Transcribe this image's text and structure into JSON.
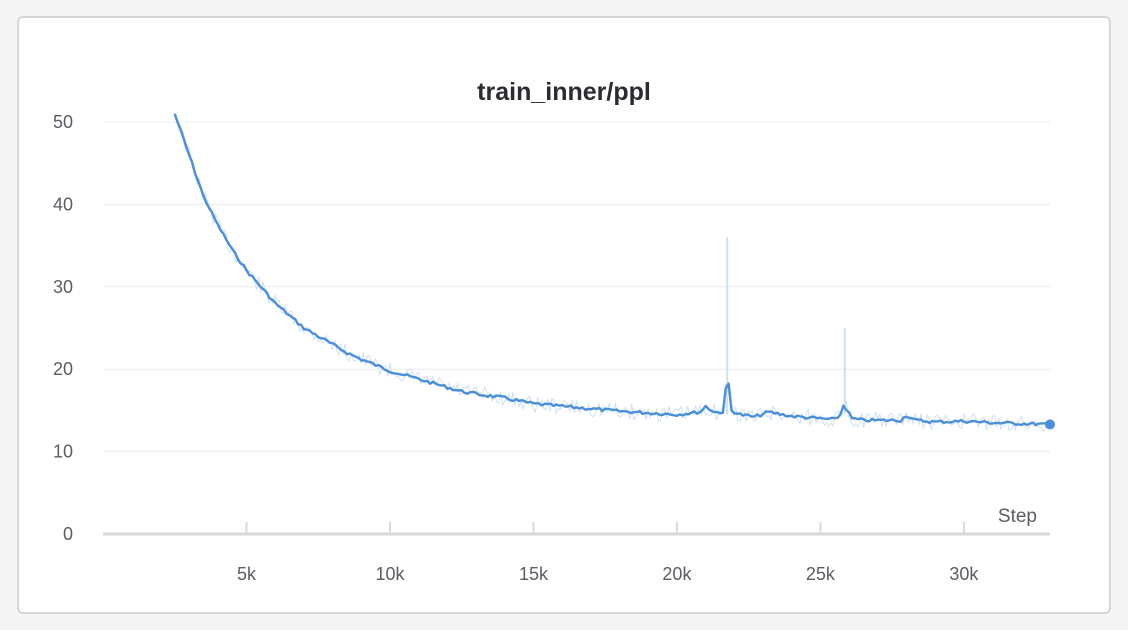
{
  "chart_data": {
    "type": "line",
    "title": "train_inner/ppl",
    "xlabel": "Step",
    "ylabel": "",
    "xlim": [
      0,
      33000
    ],
    "ylim": [
      0,
      50
    ],
    "x_ticks": [
      5000,
      10000,
      15000,
      20000,
      25000,
      30000
    ],
    "x_tick_labels": [
      "5k",
      "10k",
      "15k",
      "20k",
      "25k",
      "30k"
    ],
    "y_ticks": [
      0,
      10,
      20,
      30,
      40,
      50
    ],
    "y_tick_labels": [
      "0",
      "10",
      "20",
      "30",
      "40",
      "50"
    ],
    "grid": true,
    "colors": {
      "line": "#4a8fdc",
      "raw": "#cfe0f3",
      "grid": "#ececef",
      "axis": "#d9d9dc"
    },
    "series": [
      {
        "x": [
          2500,
          3000,
          3500,
          4000,
          4500,
          5000,
          5500,
          6000,
          6500,
          7000,
          7500,
          8000,
          8500,
          9000,
          9500,
          10000,
          10500,
          11000,
          11500,
          12000,
          12500,
          13000,
          14000,
          15000,
          16000,
          17000,
          18000,
          19000,
          20000,
          20800,
          21000,
          21300,
          21600,
          21700,
          21800,
          21900,
          22200,
          22700,
          23200,
          24000,
          25000,
          25500,
          25700,
          25800,
          25900,
          26100,
          26500,
          27000,
          27800,
          28000,
          28300,
          29000,
          30000,
          31000,
          32000,
          33000
        ],
        "y": [
          51,
          46,
          41,
          37.5,
          34.5,
          32,
          30,
          28,
          26.5,
          25,
          24,
          23,
          22,
          21.2,
          20.5,
          19.8,
          19.3,
          18.8,
          18.3,
          17.8,
          17.3,
          17,
          16.5,
          15.8,
          15.5,
          15.2,
          14.9,
          14.7,
          14.5,
          14.8,
          15.5,
          14.8,
          14.8,
          17.5,
          18.2,
          15,
          14.5,
          14.2,
          14.8,
          14.3,
          14.0,
          13.9,
          14.5,
          15.6,
          15.2,
          14,
          13.8,
          13.8,
          13.8,
          14.4,
          13.8,
          13.6,
          13.7,
          13.5,
          13.4,
          13.3
        ]
      }
    ],
    "raw_spikes": [
      {
        "x": 21750,
        "y": 36
      },
      {
        "x": 25850,
        "y": 25
      }
    ],
    "last_point": {
      "x": 33000,
      "y": 13.3
    }
  }
}
